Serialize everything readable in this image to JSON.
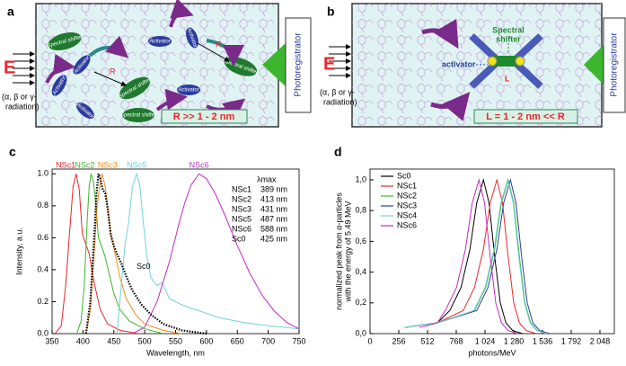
{
  "diagrams": {
    "a": {
      "label": "a",
      "energy": "E",
      "radiation": [
        "(α, β or γ-",
        "radiation)"
      ],
      "shifters": [
        "Spectral shifter",
        "Spectral shifter",
        "Spectral shifter",
        "Spectral shifter"
      ],
      "activators": [
        "Activator",
        "Activator",
        "Activator",
        "Activator",
        "Activator",
        "Activator"
      ],
      "distance": [
        "R",
        "R"
      ],
      "relation": "R >> 1 - 2 nm",
      "detector": "Photoregistrator"
    },
    "b": {
      "label": "b",
      "energy": "E",
      "radiation": [
        "(α, β or γ-",
        "radiation)"
      ],
      "shifter": [
        "Spectral",
        "shifter"
      ],
      "activator": "activator",
      "distance": "L",
      "relation": "L = 1 - 2 nm << R",
      "detector": "Photoregistrator"
    }
  },
  "chart_data": [
    {
      "type": "line",
      "label": "c",
      "xlabel": "Wavelength, nm",
      "ylabel": "Intensity, a.u.",
      "xlim": [
        350,
        750
      ],
      "xticks": [
        350,
        400,
        450,
        500,
        550,
        600,
        650,
        700,
        750
      ],
      "ylim": [
        0,
        1.03
      ],
      "yticks": [
        {
          "value": 0,
          "label": "0.0"
        },
        {
          "value": 0.2,
          "label": "0.2"
        },
        {
          "value": 0.4,
          "label": "0.4"
        },
        {
          "value": 0.6,
          "label": "0.6"
        },
        {
          "value": 0.8,
          "label": "0.8"
        },
        {
          "value": 1.0,
          "label": "1.0"
        }
      ],
      "peak_table": {
        "title": "λmax",
        "rows": [
          [
            "NSc1",
            "389 nm"
          ],
          [
            "NSc2",
            "413 nm"
          ],
          [
            "NSc3",
            "431 nm"
          ],
          [
            "NSc5",
            "487 nm"
          ],
          [
            "NSc6",
            "588 nm"
          ],
          [
            "Sc0",
            "425 nm"
          ]
        ]
      },
      "series": [
        {
          "name": "NSc1",
          "color": "#e8262b",
          "x": [
            355,
            365,
            372,
            378,
            384,
            389,
            394,
            399,
            404,
            410,
            418,
            428,
            440,
            460,
            490
          ],
          "values": [
            0,
            0.05,
            0.3,
            0.62,
            0.92,
            1.0,
            0.9,
            0.62,
            0.57,
            0.5,
            0.32,
            0.15,
            0.06,
            0.02,
            0
          ]
        },
        {
          "name": "NSc2",
          "color": "#3cb52e",
          "x": [
            390,
            397,
            402,
            407,
            410,
            413,
            417,
            421,
            425,
            430,
            436,
            442,
            450,
            460,
            475,
            500,
            530
          ],
          "values": [
            0,
            0.08,
            0.3,
            0.72,
            0.92,
            1.0,
            0.95,
            0.8,
            0.6,
            0.55,
            0.48,
            0.38,
            0.25,
            0.15,
            0.08,
            0.03,
            0
          ]
        },
        {
          "name": "NSc3",
          "color": "#f28c1c",
          "x": [
            405,
            412,
            418,
            423,
            428,
            431,
            436,
            440,
            445,
            452,
            460,
            470,
            485,
            500,
            530,
            560
          ],
          "values": [
            0,
            0.15,
            0.5,
            0.8,
            0.95,
            1.0,
            0.92,
            0.8,
            0.62,
            0.5,
            0.35,
            0.22,
            0.12,
            0.06,
            0.02,
            0
          ]
        },
        {
          "name": "NSc5",
          "color": "#6fd3d8",
          "x": [
            455,
            462,
            468,
            474,
            480,
            487,
            492,
            497,
            503,
            510,
            520,
            528,
            540,
            560,
            590,
            620,
            660,
            700,
            750
          ],
          "values": [
            0,
            0.3,
            0.55,
            0.7,
            0.92,
            1.0,
            0.93,
            0.72,
            0.5,
            0.35,
            0.3,
            0.32,
            0.22,
            0.18,
            0.14,
            0.1,
            0.07,
            0.05,
            0.03
          ]
        },
        {
          "name": "NSc6",
          "color": "#c02bc0",
          "x": [
            480,
            500,
            520,
            540,
            555,
            565,
            575,
            588,
            600,
            615,
            630,
            650,
            670,
            690,
            710,
            730,
            750
          ],
          "values": [
            0,
            0.04,
            0.2,
            0.45,
            0.68,
            0.82,
            0.93,
            1.0,
            0.97,
            0.87,
            0.74,
            0.55,
            0.38,
            0.24,
            0.14,
            0.07,
            0.03
          ]
        },
        {
          "name": "Sc0",
          "color": "#000000",
          "dotted": true,
          "x": [
            405,
            412,
            418,
            422,
            425,
            428,
            432,
            436,
            440,
            445,
            450,
            455,
            462,
            470,
            480,
            495,
            510,
            530,
            560,
            600
          ],
          "values": [
            0,
            0.2,
            0.6,
            0.88,
            1.0,
            0.97,
            0.9,
            0.88,
            0.78,
            0.62,
            0.55,
            0.5,
            0.44,
            0.36,
            0.27,
            0.18,
            0.12,
            0.06,
            0.02,
            0
          ]
        }
      ]
    },
    {
      "type": "line",
      "label": "d",
      "xlabel": "photons/MeV",
      "ylabel": [
        "normalized peak from α-particles",
        "with the energy of 5.49 MeV"
      ],
      "legend": "upper left",
      "xlim": [
        0,
        2176
      ],
      "xticks": [
        0,
        256,
        512,
        768,
        {
          "value": 1024,
          "label": "1 024"
        },
        {
          "value": 1280,
          "label": "1 280"
        },
        {
          "value": 1536,
          "label": "1 536"
        },
        {
          "value": 1792,
          "label": "1 792"
        },
        {
          "value": 2048,
          "label": "2 048"
        }
      ],
      "ylim": [
        0,
        1.07
      ],
      "yticks": [
        {
          "value": 0,
          "label": "0,0"
        },
        {
          "value": 0.2,
          "label": "0,2"
        },
        {
          "value": 0.4,
          "label": "0,4"
        },
        {
          "value": 0.6,
          "label": "0,6"
        },
        {
          "value": 0.8,
          "label": "0,8"
        },
        {
          "value": 1.0,
          "label": "1,0"
        }
      ],
      "series": [
        {
          "name": "Sc0",
          "color": "#000000",
          "x": [
            310,
            400,
            600,
            710,
            810,
            890,
            950,
            1010,
            1060,
            1110,
            1160,
            1210,
            1270,
            1360
          ],
          "values": [
            0.04,
            0.05,
            0.07,
            0.15,
            0.3,
            0.55,
            0.85,
            1.0,
            0.85,
            0.5,
            0.2,
            0.07,
            0.02,
            0
          ]
        },
        {
          "name": "NSc1",
          "color": "#e8262b",
          "x": [
            310,
            400,
            600,
            830,
            930,
            1010,
            1070,
            1130,
            1180,
            1230,
            1280,
            1330,
            1390,
            1480
          ],
          "values": [
            0.04,
            0.05,
            0.07,
            0.15,
            0.3,
            0.55,
            0.85,
            1.0,
            0.85,
            0.5,
            0.2,
            0.07,
            0.02,
            0
          ]
        },
        {
          "name": "NSc2",
          "color": "#3cb52e",
          "x": [
            310,
            400,
            600,
            930,
            1030,
            1110,
            1170,
            1230,
            1280,
            1330,
            1380,
            1430,
            1490,
            1580
          ],
          "values": [
            0.04,
            0.05,
            0.07,
            0.15,
            0.3,
            0.55,
            0.85,
            1.0,
            0.85,
            0.5,
            0.2,
            0.07,
            0.02,
            0
          ]
        },
        {
          "name": "NSc3",
          "color": "#2b3c9e",
          "x": [
            310,
            400,
            600,
            950,
            1050,
            1130,
            1190,
            1250,
            1300,
            1350,
            1400,
            1450,
            1510,
            1600
          ],
          "values": [
            0.04,
            0.05,
            0.07,
            0.15,
            0.3,
            0.55,
            0.85,
            1.0,
            0.85,
            0.5,
            0.2,
            0.07,
            0.02,
            0
          ]
        },
        {
          "name": "NSc4",
          "color": "#6fd3d8",
          "x": [
            310,
            400,
            600,
            925,
            1025,
            1105,
            1165,
            1225,
            1275,
            1325,
            1375,
            1425,
            1485,
            1575
          ],
          "values": [
            0.04,
            0.05,
            0.07,
            0.15,
            0.3,
            0.55,
            0.85,
            1.0,
            0.85,
            0.5,
            0.2,
            0.07,
            0.02,
            0
          ]
        },
        {
          "name": "NSc6",
          "color": "#c02bc0",
          "x": [
            440,
            500,
            600,
            670,
            770,
            850,
            910,
            970,
            1020,
            1070,
            1120,
            1170,
            1230,
            1320
          ],
          "values": [
            0.04,
            0.05,
            0.07,
            0.15,
            0.3,
            0.55,
            0.85,
            1.0,
            0.85,
            0.5,
            0.2,
            0.07,
            0.02,
            0
          ]
        }
      ]
    }
  ]
}
